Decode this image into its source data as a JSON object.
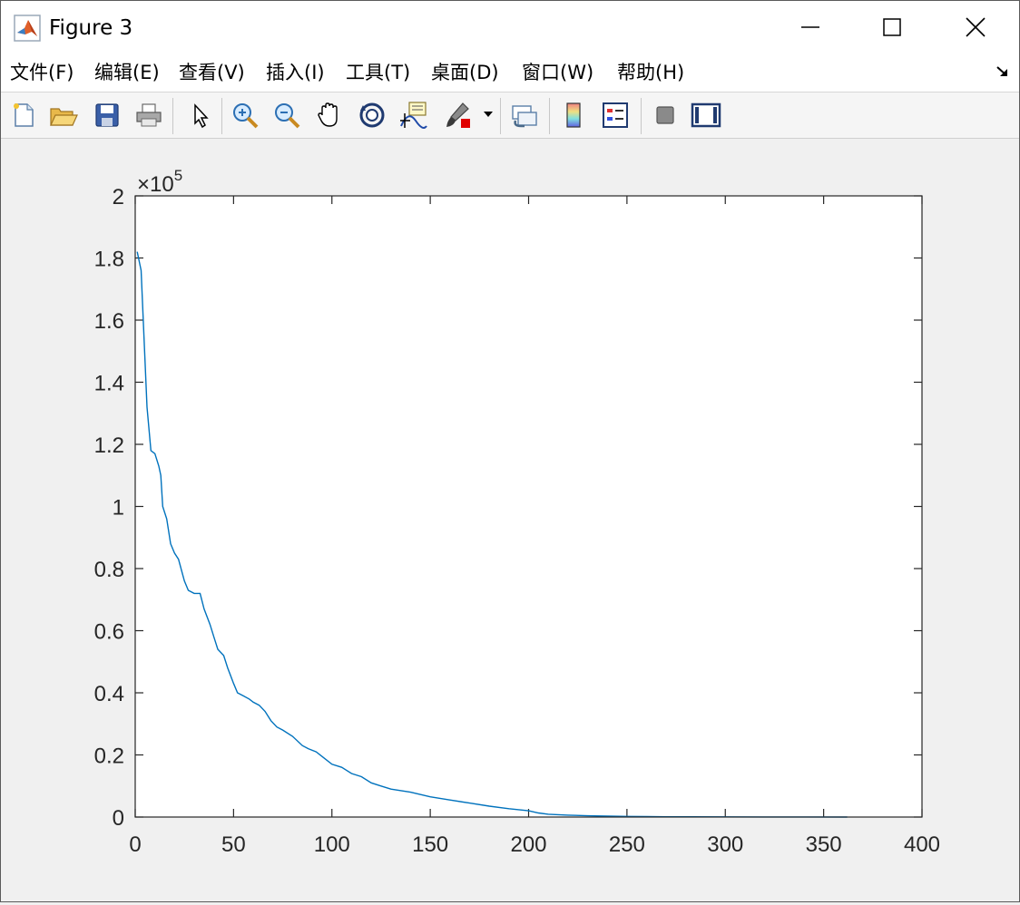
{
  "window": {
    "title": "Figure 3",
    "icons": [
      "matlab-icon",
      "minimize-icon",
      "maximize-icon",
      "close-icon"
    ]
  },
  "menubar": {
    "items": [
      "文件(F)",
      "编辑(E)",
      "查看(V)",
      "插入(I)",
      "工具(T)",
      "桌面(D)",
      "窗口(W)",
      "帮助(H)"
    ]
  },
  "toolbar": {
    "icons": [
      "new-figure-icon",
      "open-file-icon",
      "save-icon",
      "print-icon",
      "select-arrow-icon",
      "zoom-in-icon",
      "zoom-out-icon",
      "pan-hand-icon",
      "rotate-3d-icon",
      "data-cursor-icon",
      "brush-icon",
      "brush-dropdown-icon",
      "link-plot-icon",
      "colorbar-icon",
      "legend-icon",
      "hide-plot-tools-icon",
      "show-plot-tools-icon"
    ]
  },
  "colors": {
    "line": "#0072bd",
    "axes": "#262626",
    "background": "#f0f0f0",
    "plot_area": "#ffffff"
  },
  "chart_data": {
    "type": "line",
    "title": "",
    "xlabel": "",
    "ylabel": "",
    "xlim": [
      0,
      400
    ],
    "ylim": [
      0,
      2
    ],
    "xticks": [
      "0",
      "50",
      "100",
      "150",
      "200",
      "250",
      "300",
      "350",
      "400"
    ],
    "yticks": [
      "0",
      "0.2",
      "0.4",
      "0.6",
      "0.8",
      "1",
      "1.2",
      "1.4",
      "1.6",
      "1.8",
      "2"
    ],
    "y_exponent_base": "×10",
    "y_exponent_power": "5",
    "grid": false,
    "series": [
      {
        "x": [
          1,
          3,
          6,
          8,
          10,
          12,
          13,
          14,
          16,
          18,
          20,
          22,
          25,
          27,
          30,
          33,
          35,
          38,
          40,
          42,
          45,
          47,
          50,
          52,
          55,
          58,
          60,
          63,
          66,
          69,
          72,
          75,
          80,
          85,
          88,
          92,
          96,
          100,
          105,
          110,
          115,
          120,
          125,
          130,
          140,
          150,
          160,
          170,
          180,
          190,
          200,
          205,
          210,
          220,
          230,
          240,
          250,
          260,
          270,
          280,
          300,
          320,
          340,
          362
        ],
        "y": [
          1.82,
          1.76,
          1.32,
          1.18,
          1.17,
          1.13,
          1.1,
          1.0,
          0.96,
          0.88,
          0.85,
          0.83,
          0.76,
          0.73,
          0.72,
          0.72,
          0.67,
          0.62,
          0.58,
          0.54,
          0.52,
          0.48,
          0.43,
          0.4,
          0.39,
          0.38,
          0.37,
          0.36,
          0.34,
          0.31,
          0.29,
          0.28,
          0.26,
          0.23,
          0.22,
          0.21,
          0.19,
          0.17,
          0.16,
          0.14,
          0.13,
          0.11,
          0.1,
          0.09,
          0.08,
          0.065,
          0.055,
          0.045,
          0.035,
          0.027,
          0.02,
          0.013,
          0.009,
          0.006,
          0.004,
          0.003,
          0.002,
          0.0015,
          0.001,
          0.0008,
          0.0005,
          0.0003,
          0.0002,
          0.0001
        ]
      }
    ]
  }
}
